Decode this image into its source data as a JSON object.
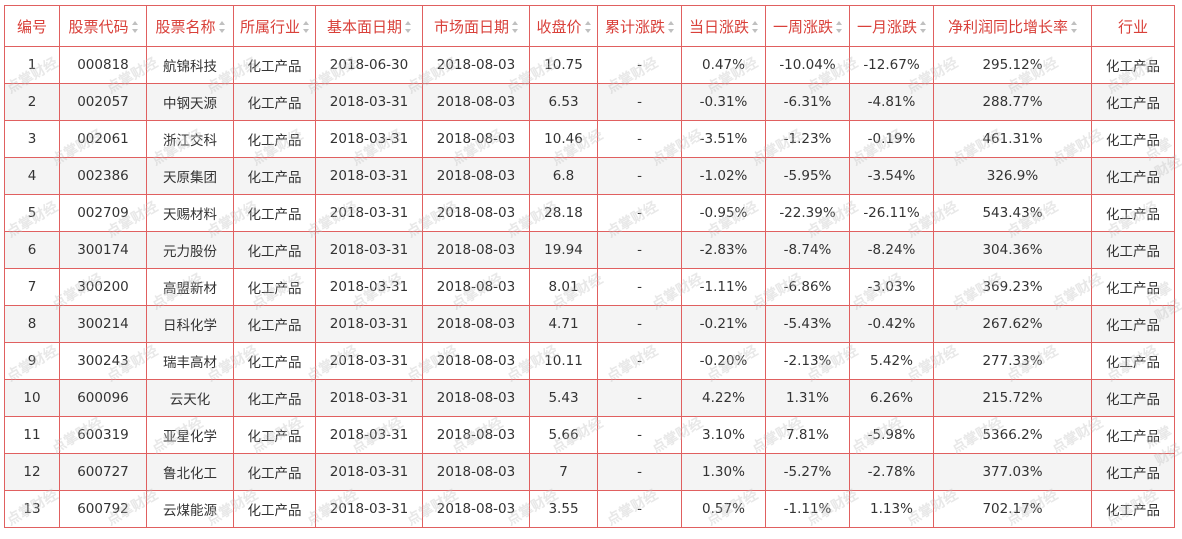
{
  "headers": [
    {
      "label": "编号",
      "sortable": false
    },
    {
      "label": "股票代码",
      "sortable": true
    },
    {
      "label": "股票名称",
      "sortable": true
    },
    {
      "label": "所属行业",
      "sortable": true
    },
    {
      "label": "基本面日期",
      "sortable": true
    },
    {
      "label": "市场面日期",
      "sortable": true
    },
    {
      "label": "收盘价",
      "sortable": true
    },
    {
      "label": "累计涨跌",
      "sortable": true
    },
    {
      "label": "当日涨跌",
      "sortable": true
    },
    {
      "label": "一周涨跌",
      "sortable": true
    },
    {
      "label": "一月涨跌",
      "sortable": true
    },
    {
      "label": "净利润同比增长率",
      "sortable": true
    },
    {
      "label": "行业",
      "sortable": false
    }
  ],
  "rows": [
    [
      "1",
      "000818",
      "航锦科技",
      "化工产品",
      "2018-06-30",
      "2018-08-03",
      "10.75",
      "-",
      "0.47%",
      "-10.04%",
      "-12.67%",
      "295.12%",
      "化工产品"
    ],
    [
      "2",
      "002057",
      "中钢天源",
      "化工产品",
      "2018-03-31",
      "2018-08-03",
      "6.53",
      "-",
      "-0.31%",
      "-6.31%",
      "-4.81%",
      "288.77%",
      "化工产品"
    ],
    [
      "3",
      "002061",
      "浙江交科",
      "化工产品",
      "2018-03-31",
      "2018-08-03",
      "10.46",
      "-",
      "-3.51%",
      "-1.23%",
      "-0.19%",
      "461.31%",
      "化工产品"
    ],
    [
      "4",
      "002386",
      "天原集团",
      "化工产品",
      "2018-03-31",
      "2018-08-03",
      "6.8",
      "-",
      "-1.02%",
      "-5.95%",
      "-3.54%",
      "326.9%",
      "化工产品"
    ],
    [
      "5",
      "002709",
      "天赐材料",
      "化工产品",
      "2018-03-31",
      "2018-08-03",
      "28.18",
      "-",
      "-0.95%",
      "-22.39%",
      "-26.11%",
      "543.43%",
      "化工产品"
    ],
    [
      "6",
      "300174",
      "元力股份",
      "化工产品",
      "2018-03-31",
      "2018-08-03",
      "19.94",
      "-",
      "-2.83%",
      "-8.74%",
      "-8.24%",
      "304.36%",
      "化工产品"
    ],
    [
      "7",
      "300200",
      "高盟新材",
      "化工产品",
      "2018-03-31",
      "2018-08-03",
      "8.01",
      "-",
      "-1.11%",
      "-6.86%",
      "-3.03%",
      "369.23%",
      "化工产品"
    ],
    [
      "8",
      "300214",
      "日科化学",
      "化工产品",
      "2018-03-31",
      "2018-08-03",
      "4.71",
      "-",
      "-0.21%",
      "-5.43%",
      "-0.42%",
      "267.62%",
      "化工产品"
    ],
    [
      "9",
      "300243",
      "瑞丰高材",
      "化工产品",
      "2018-03-31",
      "2018-08-03",
      "10.11",
      "-",
      "-0.20%",
      "-2.13%",
      "5.42%",
      "277.33%",
      "化工产品"
    ],
    [
      "10",
      "600096",
      "云天化",
      "化工产品",
      "2018-03-31",
      "2018-08-03",
      "5.43",
      "-",
      "4.22%",
      "1.31%",
      "6.26%",
      "215.72%",
      "化工产品"
    ],
    [
      "11",
      "600319",
      "亚星化学",
      "化工产品",
      "2018-03-31",
      "2018-08-03",
      "5.66",
      "-",
      "3.10%",
      "7.81%",
      "-5.98%",
      "5366.2%",
      "化工产品"
    ],
    [
      "12",
      "600727",
      "鲁北化工",
      "化工产品",
      "2018-03-31",
      "2018-08-03",
      "7",
      "-",
      "1.30%",
      "-5.27%",
      "-2.78%",
      "377.03%",
      "化工产品"
    ],
    [
      "13",
      "600792",
      "云煤能源",
      "化工产品",
      "2018-03-31",
      "2018-08-03",
      "3.55",
      "-",
      "0.57%",
      "-1.11%",
      "1.13%",
      "702.17%",
      "化工产品"
    ]
  ],
  "watermark": "点掌财经",
  "colors": {
    "accent": "#d9403a",
    "border": "#e06060",
    "stripe": "#f4f4f4",
    "text": "#333333"
  }
}
